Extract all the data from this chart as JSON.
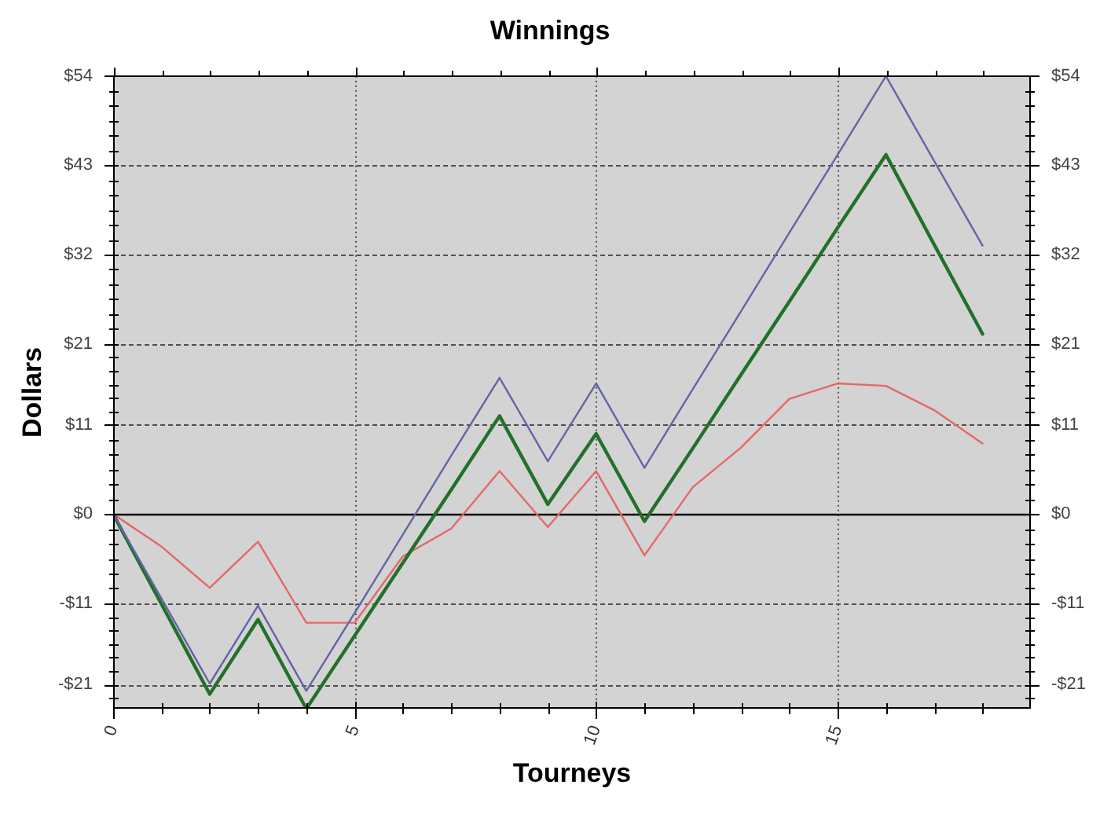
{
  "chart_data": {
    "type": "line",
    "title": "Winnings",
    "xlabel": "Tourneys",
    "ylabel": "Dollars",
    "x": [
      0,
      1,
      2,
      3,
      4,
      5,
      6,
      7,
      8,
      9,
      10,
      11,
      12,
      13,
      14,
      15,
      16,
      17,
      18
    ],
    "series": [
      {
        "color": "#6464a8",
        "values": [
          0,
          -10.4,
          -20.9,
          -11.3,
          -21.8,
          -12.2,
          -2.5,
          7.2,
          16.8,
          6.5,
          16.1,
          5.7,
          15.4,
          25.0,
          34.7,
          44.3,
          54,
          43.5,
          33.1
        ]
      },
      {
        "color": "#22702a",
        "values": [
          0,
          -11.1,
          -22.2,
          -13.0,
          -24.0,
          -15.0,
          -6.0,
          3.0,
          12.1,
          1.2,
          9.9,
          -0.9,
          8.1,
          17.2,
          26.2,
          35.3,
          44.3,
          33.2,
          22.2
        ]
      },
      {
        "color": "#e46868",
        "values": [
          0,
          -4.0,
          -9.1,
          -3.4,
          -13.4,
          -13.4,
          -5.2,
          -1.8,
          5.3,
          -1.6,
          5.3,
          -5.1,
          3.3,
          8.2,
          14.2,
          16.1,
          15.8,
          12.8,
          8.7
        ]
      }
    ],
    "xlim": [
      0,
      19
    ],
    "xticks": [
      0,
      {
        "value": 1,
        "label": null
      },
      {
        "value": 2,
        "label": null
      },
      {
        "value": 3,
        "label": null
      },
      {
        "value": 4,
        "label": null
      },
      5,
      {
        "value": 6,
        "label": null
      },
      {
        "value": 7,
        "label": null
      },
      {
        "value": 8,
        "label": null
      },
      {
        "value": 9,
        "label": null
      },
      10,
      {
        "value": 11,
        "label": null
      },
      {
        "value": 12,
        "label": null
      },
      {
        "value": 13,
        "label": null
      },
      {
        "value": 14,
        "label": null
      },
      15,
      {
        "value": 16,
        "label": null
      },
      {
        "value": 17,
        "label": null
      },
      {
        "value": 18,
        "label": null
      }
    ],
    "ylim": [
      -24,
      54
    ],
    "yticks": [
      {
        "value": -22.67,
        "label": null
      },
      {
        "value": -21,
        "label": "-$21"
      },
      {
        "value": -19.33,
        "label": null
      },
      {
        "value": -17.67,
        "label": null
      },
      {
        "value": -16,
        "label": null
      },
      {
        "value": -14.33,
        "label": null
      },
      {
        "value": -12.67,
        "label": null
      },
      {
        "value": -11,
        "label": "-$11"
      },
      {
        "value": -9.17,
        "label": null
      },
      {
        "value": -7.33,
        "label": null
      },
      {
        "value": -5.5,
        "label": null
      },
      {
        "value": -3.67,
        "label": null
      },
      {
        "value": -1.83,
        "label": null
      },
      {
        "value": 0,
        "label": "$0"
      },
      {
        "value": 1.83,
        "label": null
      },
      {
        "value": 3.67,
        "label": null
      },
      {
        "value": 5.5,
        "label": null
      },
      {
        "value": 7.33,
        "label": null
      },
      {
        "value": 9.17,
        "label": null
      },
      {
        "value": 11,
        "label": "$11"
      },
      {
        "value": 12.67,
        "label": null
      },
      {
        "value": 14.33,
        "label": null
      },
      {
        "value": 16,
        "label": null
      },
      {
        "value": 17.67,
        "label": null
      },
      {
        "value": 19.33,
        "label": null
      },
      {
        "value": 21,
        "label": "$21"
      },
      {
        "value": 22.83,
        "label": null
      },
      {
        "value": 24.67,
        "label": null
      },
      {
        "value": 26.5,
        "label": null
      },
      {
        "value": 28.33,
        "label": null
      },
      {
        "value": 30.17,
        "label": null
      },
      {
        "value": 32,
        "label": "$32"
      },
      {
        "value": 33.83,
        "label": null
      },
      {
        "value": 35.67,
        "label": null
      },
      {
        "value": 37.5,
        "label": null
      },
      {
        "value": 39.33,
        "label": null
      },
      {
        "value": 41.17,
        "label": null
      },
      {
        "value": 43,
        "label": "$43"
      },
      {
        "value": 44.83,
        "label": null
      },
      {
        "value": 46.67,
        "label": null
      },
      {
        "value": 48.5,
        "label": null
      },
      {
        "value": 50.33,
        "label": null
      },
      {
        "value": 52.17,
        "label": null
      },
      {
        "value": 54,
        "label": "$54"
      }
    ],
    "y2lim": [
      -24,
      54
    ],
    "y2ticks": [
      {
        "value": -22.67,
        "label": null
      },
      {
        "value": -21,
        "label": "-$21"
      },
      {
        "value": -19.33,
        "label": null
      },
      {
        "value": -17.67,
        "label": null
      },
      {
        "value": -16,
        "label": null
      },
      {
        "value": -14.33,
        "label": null
      },
      {
        "value": -12.67,
        "label": null
      },
      {
        "value": -11,
        "label": "-$11"
      },
      {
        "value": -9.17,
        "label": null
      },
      {
        "value": -7.33,
        "label": null
      },
      {
        "value": -5.5,
        "label": null
      },
      {
        "value": -3.67,
        "label": null
      },
      {
        "value": -1.83,
        "label": null
      },
      {
        "value": 0,
        "label": "$0"
      },
      {
        "value": 1.83,
        "label": null
      },
      {
        "value": 3.67,
        "label": null
      },
      {
        "value": 5.5,
        "label": null
      },
      {
        "value": 7.33,
        "label": null
      },
      {
        "value": 9.17,
        "label": null
      },
      {
        "value": 11,
        "label": "$11"
      },
      {
        "value": 12.67,
        "label": null
      },
      {
        "value": 14.33,
        "label": null
      },
      {
        "value": 16,
        "label": null
      },
      {
        "value": 17.67,
        "label": null
      },
      {
        "value": 19.33,
        "label": null
      },
      {
        "value": 21,
        "label": "$21"
      },
      {
        "value": 22.83,
        "label": null
      },
      {
        "value": 24.67,
        "label": null
      },
      {
        "value": 26.5,
        "label": null
      },
      {
        "value": 28.33,
        "label": null
      },
      {
        "value": 30.17,
        "label": null
      },
      {
        "value": 32,
        "label": "$32"
      },
      {
        "value": 33.83,
        "label": null
      },
      {
        "value": 35.67,
        "label": null
      },
      {
        "value": 37.5,
        "label": null
      },
      {
        "value": 39.33,
        "label": null
      },
      {
        "value": 41.17,
        "label": null
      },
      {
        "value": 43,
        "label": "$43"
      },
      {
        "value": 44.83,
        "label": null
      },
      {
        "value": 46.67,
        "label": null
      },
      {
        "value": 48.5,
        "label": null
      },
      {
        "value": 50.33,
        "label": null
      },
      {
        "value": 52.17,
        "label": null
      },
      {
        "value": 54,
        "label": "$54"
      }
    ],
    "grid": true,
    "ref_lines": [
      {
        "axis": "y",
        "value": 0,
        "color": "#000000"
      }
    ]
  }
}
